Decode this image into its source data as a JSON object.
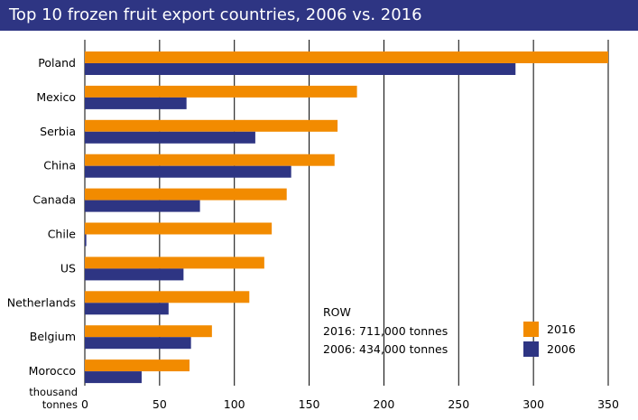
{
  "chart_data": {
    "type": "bar",
    "orientation": "horizontal",
    "title": "Top 10 frozen fruit export countries, 2006 vs. 2016",
    "categories": [
      "Poland",
      "Mexico",
      "Serbia",
      "China",
      "Canada",
      "Chile",
      "US",
      "Netherlands",
      "Belgium",
      "Morocco"
    ],
    "series": [
      {
        "name": "2016",
        "color": "#f28b00",
        "values": [
          350,
          182,
          169,
          167,
          135,
          125,
          120,
          110,
          85,
          70
        ]
      },
      {
        "name": "2006",
        "color": "#2e3583",
        "values": [
          288,
          68,
          114,
          138,
          77,
          1,
          66,
          56,
          71,
          38
        ]
      }
    ],
    "xlim": [
      0,
      350
    ],
    "xticks": [
      0,
      50,
      100,
      150,
      200,
      250,
      300,
      350
    ],
    "xlabel_lines": [
      "thousand",
      "tonnes"
    ],
    "ylabel": "",
    "grid": true,
    "legend_position": "bottom-right",
    "annotation": {
      "lines": [
        "ROW",
        "2016: 711,000 tonnes",
        "2006: 434,000 tonnes"
      ]
    }
  }
}
